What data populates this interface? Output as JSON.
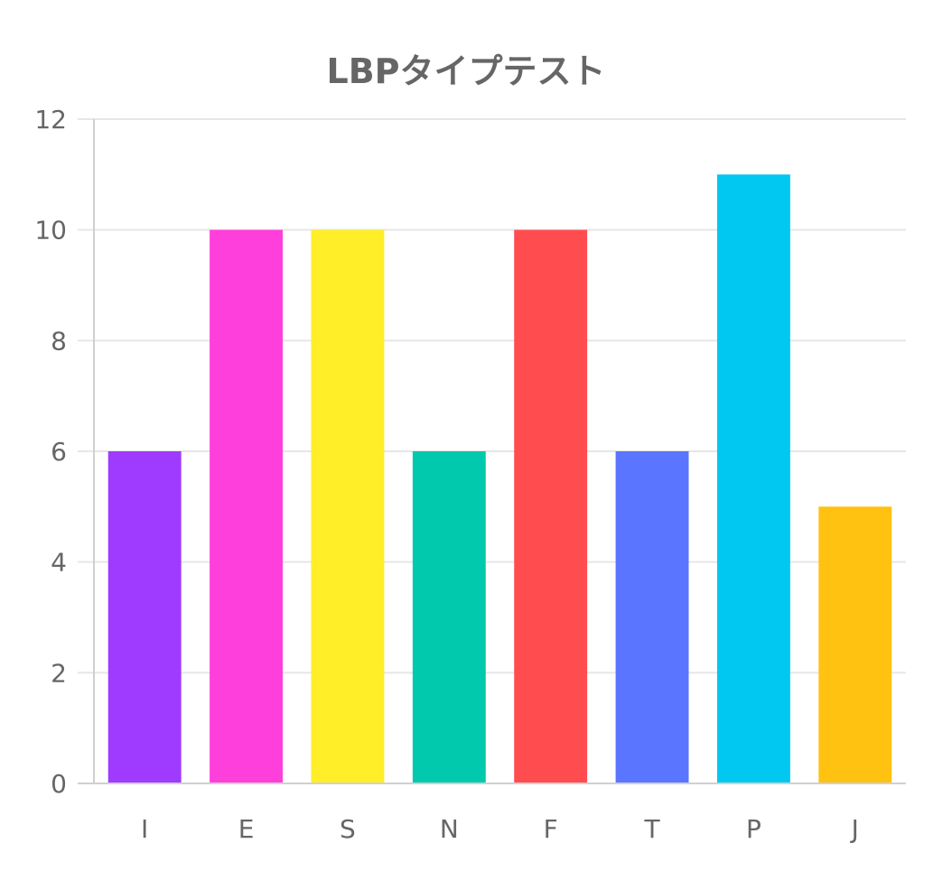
{
  "chart_data": {
    "type": "bar",
    "title": "LBPタイプテスト",
    "categories": [
      "I",
      "E",
      "S",
      "N",
      "F",
      "T",
      "P",
      "J"
    ],
    "values": [
      6,
      10,
      10,
      6,
      10,
      6,
      11,
      5
    ],
    "colors": [
      "#9f3bff",
      "#ff3fdc",
      "#ffee28",
      "#00c9ae",
      "#ff4d4f",
      "#5a75ff",
      "#00c8f0",
      "#ffc210"
    ],
    "ylim": [
      0,
      12
    ],
    "yticks": [
      0,
      2,
      4,
      6,
      8,
      10,
      12
    ],
    "grid": true,
    "legend": "none",
    "xlabel": "",
    "ylabel": ""
  }
}
